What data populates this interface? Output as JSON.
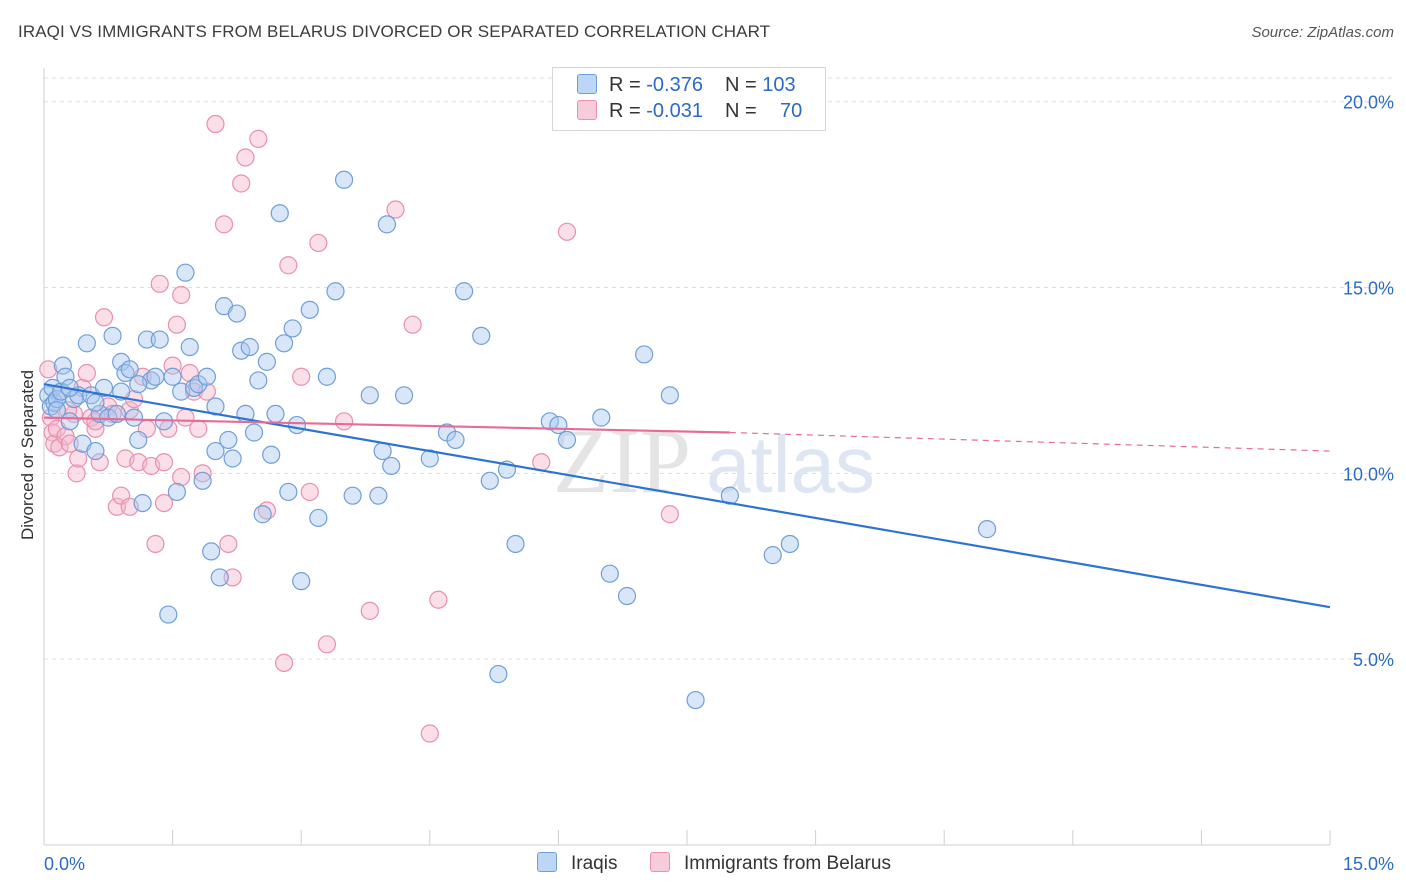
{
  "header": {
    "title": "IRAQI VS IMMIGRANTS FROM BELARUS DIVORCED OR SEPARATED CORRELATION CHART",
    "source": "Source: ZipAtlas.com"
  },
  "legend_top": {
    "rows": [
      {
        "r_label": "R = ",
        "r_value": "-0.376",
        "n_label": "N = ",
        "n_value": "103",
        "color": "#a8c8f0"
      },
      {
        "r_label": "R = ",
        "r_value": "-0.031",
        "n_label": "N = ",
        "n_value": "70",
        "color": "#f4b6cc"
      }
    ]
  },
  "legend_bottom": [
    {
      "label": "Iraqis",
      "color": "#a8c8f0"
    },
    {
      "label": "Immigrants from Belarus",
      "color": "#f4b6cc"
    }
  ],
  "watermark": {
    "zip": "ZIP",
    "atlas": "atlas"
  },
  "colors": {
    "blue_fill": "#a8c8f0",
    "blue_stroke": "#6f9fd8",
    "blue_line": "#2d74d2",
    "pink_fill": "#f4b6cc",
    "pink_stroke": "#e98fb0",
    "pink_line": "#e86a96",
    "tick_text": "#2a6ac8",
    "grid": "#dddddd"
  },
  "chart_data": {
    "type": "scatter",
    "title": "IRAQI VS IMMIGRANTS FROM BELARUS DIVORCED OR SEPARATED CORRELATION CHART",
    "xlabel": "",
    "ylabel": "Divorced or Separated",
    "xlim": [
      0,
      15
    ],
    "ylim": [
      0,
      20.8
    ],
    "x_tick_labels": [
      {
        "value": 0,
        "label": "0.0%"
      },
      {
        "value": 15,
        "label": "15.0%"
      }
    ],
    "y_tick_labels": [
      {
        "value": 5,
        "label": "5.0%"
      },
      {
        "value": 10,
        "label": "10.0%"
      },
      {
        "value": 15,
        "label": "15.0%"
      },
      {
        "value": 20,
        "label": "20.0%"
      }
    ],
    "x_minor_ticks": [
      0,
      1.5,
      3,
      4.5,
      6,
      7.5,
      9,
      10.5,
      12,
      13.5,
      15
    ],
    "grid": true,
    "series": [
      {
        "name": "Iraqis",
        "color": "#a8c8f0",
        "r": -0.376,
        "n": 103,
        "trend": {
          "x": [
            0,
            15
          ],
          "y": [
            12.4,
            6.4
          ],
          "dashed_from": null
        },
        "points": [
          [
            0.05,
            12.1
          ],
          [
            0.08,
            11.8
          ],
          [
            0.1,
            12.3
          ],
          [
            0.12,
            11.9
          ],
          [
            0.15,
            12.0
          ],
          [
            0.2,
            12.2
          ],
          [
            0.22,
            12.9
          ],
          [
            0.25,
            12.6
          ],
          [
            0.3,
            11.4
          ],
          [
            0.35,
            12.0
          ],
          [
            0.4,
            12.1
          ],
          [
            0.45,
            10.8
          ],
          [
            0.5,
            13.5
          ],
          [
            0.55,
            12.1
          ],
          [
            0.6,
            10.6
          ],
          [
            0.65,
            11.6
          ],
          [
            0.7,
            12.3
          ],
          [
            0.75,
            11.5
          ],
          [
            0.8,
            13.7
          ],
          [
            0.85,
            11.6
          ],
          [
            0.9,
            13.0
          ],
          [
            0.95,
            12.7
          ],
          [
            1.0,
            12.8
          ],
          [
            1.05,
            11.5
          ],
          [
            1.1,
            10.9
          ],
          [
            1.15,
            9.2
          ],
          [
            1.2,
            13.6
          ],
          [
            1.25,
            12.5
          ],
          [
            1.3,
            12.6
          ],
          [
            1.35,
            13.6
          ],
          [
            1.4,
            11.4
          ],
          [
            1.45,
            6.2
          ],
          [
            1.5,
            12.6
          ],
          [
            1.55,
            9.5
          ],
          [
            1.6,
            12.2
          ],
          [
            1.65,
            15.4
          ],
          [
            1.7,
            13.4
          ],
          [
            1.75,
            12.3
          ],
          [
            1.8,
            12.4
          ],
          [
            1.85,
            9.8
          ],
          [
            1.9,
            12.6
          ],
          [
            1.95,
            7.9
          ],
          [
            2.0,
            10.6
          ],
          [
            2.05,
            7.2
          ],
          [
            2.1,
            14.5
          ],
          [
            2.15,
            10.9
          ],
          [
            2.2,
            10.4
          ],
          [
            2.25,
            14.3
          ],
          [
            2.3,
            13.3
          ],
          [
            2.35,
            11.6
          ],
          [
            2.4,
            13.4
          ],
          [
            2.45,
            11.1
          ],
          [
            2.5,
            12.5
          ],
          [
            2.55,
            8.9
          ],
          [
            2.6,
            13.0
          ],
          [
            2.65,
            10.5
          ],
          [
            2.7,
            11.6
          ],
          [
            2.75,
            17.0
          ],
          [
            2.8,
            13.5
          ],
          [
            2.85,
            9.5
          ],
          [
            2.9,
            13.9
          ],
          [
            2.95,
            11.3
          ],
          [
            3.0,
            7.1
          ],
          [
            3.1,
            14.4
          ],
          [
            3.2,
            8.8
          ],
          [
            3.4,
            14.9
          ],
          [
            3.5,
            17.9
          ],
          [
            3.6,
            9.4
          ],
          [
            3.8,
            12.1
          ],
          [
            3.9,
            9.4
          ],
          [
            3.95,
            10.6
          ],
          [
            4.0,
            16.7
          ],
          [
            4.05,
            10.2
          ],
          [
            4.2,
            12.1
          ],
          [
            4.5,
            10.4
          ],
          [
            4.7,
            11.1
          ],
          [
            4.8,
            10.9
          ],
          [
            4.9,
            14.9
          ],
          [
            5.1,
            13.7
          ],
          [
            5.2,
            9.8
          ],
          [
            5.3,
            4.6
          ],
          [
            5.4,
            10.1
          ],
          [
            5.5,
            8.1
          ],
          [
            5.9,
            11.4
          ],
          [
            6.1,
            10.9
          ],
          [
            6.0,
            11.3
          ],
          [
            6.5,
            11.5
          ],
          [
            6.6,
            7.3
          ],
          [
            6.8,
            6.7
          ],
          [
            7.0,
            13.2
          ],
          [
            7.3,
            12.1
          ],
          [
            7.6,
            3.9
          ],
          [
            8.0,
            9.4
          ],
          [
            8.5,
            7.8
          ],
          [
            8.7,
            8.1
          ],
          [
            11.0,
            8.5
          ],
          [
            0.6,
            11.9
          ],
          [
            1.1,
            12.4
          ],
          [
            0.3,
            12.3
          ],
          [
            2.0,
            11.8
          ],
          [
            3.3,
            12.6
          ],
          [
            0.15,
            11.7
          ],
          [
            0.9,
            12.2
          ]
        ]
      },
      {
        "name": "Immigrants from Belarus",
        "color": "#f4b6cc",
        "r": -0.031,
        "n": 70,
        "trend": {
          "x": [
            0,
            8
          ],
          "y": [
            11.5,
            11.1
          ],
          "dashed_to": [
            15,
            10.6
          ]
        },
        "points": [
          [
            0.05,
            12.8
          ],
          [
            0.08,
            11.5
          ],
          [
            0.1,
            11.1
          ],
          [
            0.12,
            10.8
          ],
          [
            0.15,
            11.2
          ],
          [
            0.18,
            10.7
          ],
          [
            0.2,
            12.2
          ],
          [
            0.25,
            11.0
          ],
          [
            0.3,
            10.8
          ],
          [
            0.35,
            11.6
          ],
          [
            0.38,
            10.0
          ],
          [
            0.4,
            10.4
          ],
          [
            0.45,
            12.3
          ],
          [
            0.5,
            12.7
          ],
          [
            0.55,
            11.5
          ],
          [
            0.6,
            11.2
          ],
          [
            0.65,
            10.3
          ],
          [
            0.7,
            14.2
          ],
          [
            0.75,
            11.8
          ],
          [
            0.8,
            11.6
          ],
          [
            0.85,
            9.1
          ],
          [
            0.9,
            9.4
          ],
          [
            0.95,
            10.4
          ],
          [
            1.0,
            11.7
          ],
          [
            1.05,
            12.0
          ],
          [
            1.1,
            10.3
          ],
          [
            1.15,
            12.6
          ],
          [
            1.2,
            11.2
          ],
          [
            1.25,
            10.2
          ],
          [
            1.3,
            8.1
          ],
          [
            1.35,
            15.1
          ],
          [
            1.4,
            9.2
          ],
          [
            1.45,
            11.2
          ],
          [
            1.5,
            12.9
          ],
          [
            1.55,
            14.0
          ],
          [
            1.6,
            9.9
          ],
          [
            1.65,
            11.5
          ],
          [
            1.7,
            12.7
          ],
          [
            1.75,
            12.2
          ],
          [
            1.8,
            11.2
          ],
          [
            1.85,
            10.0
          ],
          [
            1.9,
            12.2
          ],
          [
            2.0,
            19.4
          ],
          [
            2.1,
            16.7
          ],
          [
            2.15,
            8.1
          ],
          [
            2.2,
            7.2
          ],
          [
            2.3,
            17.8
          ],
          [
            2.35,
            18.5
          ],
          [
            2.5,
            19.0
          ],
          [
            2.6,
            9.0
          ],
          [
            2.8,
            4.9
          ],
          [
            2.85,
            15.6
          ],
          [
            3.0,
            12.6
          ],
          [
            3.1,
            9.5
          ],
          [
            3.2,
            16.2
          ],
          [
            3.3,
            5.4
          ],
          [
            3.5,
            11.4
          ],
          [
            3.8,
            6.3
          ],
          [
            4.1,
            17.1
          ],
          [
            4.3,
            14.0
          ],
          [
            4.5,
            3.0
          ],
          [
            4.6,
            6.6
          ],
          [
            5.8,
            10.3
          ],
          [
            6.1,
            16.5
          ],
          [
            7.3,
            8.9
          ],
          [
            0.28,
            11.7
          ],
          [
            0.6,
            11.4
          ],
          [
            1.4,
            10.3
          ],
          [
            1.0,
            9.1
          ],
          [
            1.6,
            14.8
          ]
        ]
      }
    ]
  }
}
